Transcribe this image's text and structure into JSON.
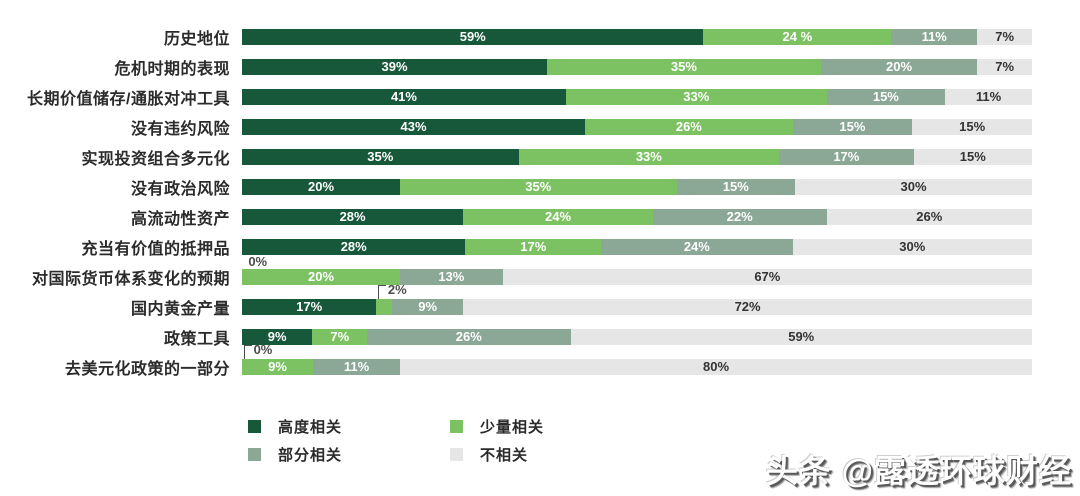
{
  "chart_data": {
    "type": "bar",
    "stacked": true,
    "orientation": "horizontal",
    "title": "",
    "xlabel": "",
    "ylabel": "",
    "xlim": [
      0,
      100
    ],
    "grid": false,
    "legend_position": "bottom-left",
    "categories": [
      "历史地位",
      "危机时期的表现",
      "长期价值储存/通胀对冲工具",
      "没有违约风险",
      "实现投资组合多元化",
      "没有政治风险",
      "高流动性资产",
      "充当有价值的抵押品",
      "对国际货币体系变化的预期",
      "国内黄金产量",
      "政策工具",
      "去美元化政策的一部分"
    ],
    "series": [
      {
        "name": "高度相关",
        "color": "#17583a",
        "label_color": "#ffffff",
        "values": [
          59,
          39,
          41,
          43,
          35,
          20,
          28,
          28,
          0,
          17,
          9,
          0
        ]
      },
      {
        "name": "少量相关",
        "color": "#7cc263",
        "label_color": "#ffffff",
        "values": [
          24,
          35,
          33,
          26,
          33,
          35,
          24,
          17,
          20,
          2,
          7,
          9
        ]
      },
      {
        "name": "部分相关",
        "color": "#8ba795",
        "label_color": "#ffffff",
        "values": [
          11,
          20,
          15,
          15,
          17,
          15,
          22,
          24,
          13,
          9,
          26,
          11
        ]
      },
      {
        "name": "不相关",
        "color": "#e6e6e6",
        "label_color": "#333333",
        "values": [
          7,
          7,
          11,
          15,
          15,
          30,
          26,
          30,
          67,
          72,
          59,
          80
        ]
      }
    ],
    "segment_labels": [
      [
        "59%",
        "24 %",
        "11%",
        "7%"
      ],
      [
        "39%",
        "35%",
        "20%",
        "7%"
      ],
      [
        "41%",
        "33%",
        "15%",
        "11%"
      ],
      [
        "43%",
        "26%",
        "15%",
        "15%"
      ],
      [
        "35%",
        "33%",
        "17%",
        "15%"
      ],
      [
        "20%",
        "35%",
        "15%",
        "30%"
      ],
      [
        "28%",
        "24%",
        "22%",
        "26%"
      ],
      [
        "28%",
        "17%",
        "24%",
        "30%"
      ],
      [
        "",
        "20%",
        "13%",
        "67%"
      ],
      [
        "17%",
        "",
        "9%",
        "72%"
      ],
      [
        "9%",
        "7%",
        "26%",
        "59%"
      ],
      [
        "",
        "9%",
        "11%",
        "80%"
      ]
    ],
    "annotations": [
      {
        "row": 8,
        "text": "0%",
        "bracket": false,
        "left_pct": 0.8
      },
      {
        "row": 9,
        "text": "2%",
        "bracket": true,
        "left_pct": 17.2
      },
      {
        "row": 11,
        "text": "0%",
        "bracket": true,
        "left_pct": 0.2
      }
    ],
    "legend_columns": [
      [
        {
          "label": "高度相关",
          "color": "#17583a"
        },
        {
          "label": "部分相关",
          "color": "#8ba795"
        }
      ],
      [
        {
          "label": "少量相关",
          "color": "#7cc263"
        },
        {
          "label": "不相关",
          "color": "#e6e6e6"
        }
      ]
    ]
  },
  "watermark": {
    "text": "头条 @露透环球财经"
  }
}
